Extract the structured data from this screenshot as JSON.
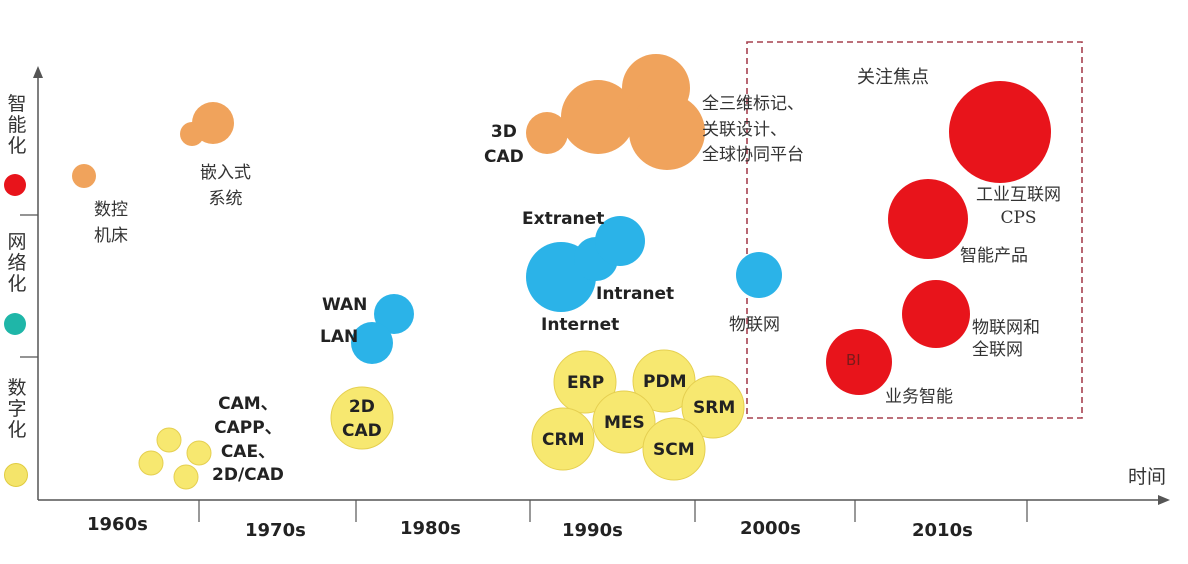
{
  "y_axis": {
    "categories": [
      {
        "label": "智能化",
        "color": "#e8141b"
      },
      {
        "label": "网络化",
        "color": "#1fb6a8"
      },
      {
        "label": "数字化",
        "color": "#f4e46a"
      }
    ]
  },
  "x_axis": {
    "title": "时间",
    "decades": [
      "1960s",
      "1970s",
      "1980s",
      "1990s",
      "2000s",
      "2010s"
    ]
  },
  "focus_box": {
    "title": "关注焦点"
  },
  "labels": {
    "nc_machine": "数控\n机床",
    "embedded": "嵌入式\n系统",
    "cad3d": "3D\nCAD",
    "plm": "全三维标记、\n关联设计、\n全球协同平台",
    "extranet": "Extranet",
    "intranet": "Intranet",
    "internet": "Internet",
    "wan": "WAN",
    "lan": "LAN",
    "iot": "物联网",
    "iiot": "工业互联网\nCPS",
    "smart_product": "智能产品",
    "ioe": "物联网和\n全联网",
    "bi": "BI",
    "bi_label": "业务智能",
    "cam_group": "CAM、\nCAPP、\nCAE、\n2D/CAD",
    "cad2d": "2D\nCAD",
    "erp": "ERP",
    "pdm": "PDM",
    "mes": "MES",
    "srm": "SRM",
    "crm": "CRM",
    "scm": "SCM"
  },
  "colors": {
    "orange": "#f0a35c",
    "blue": "#2bb3e8",
    "red": "#e8141b",
    "yellow": "#f7e870",
    "axis": "#555555",
    "focus_border": "#a6414f"
  }
}
